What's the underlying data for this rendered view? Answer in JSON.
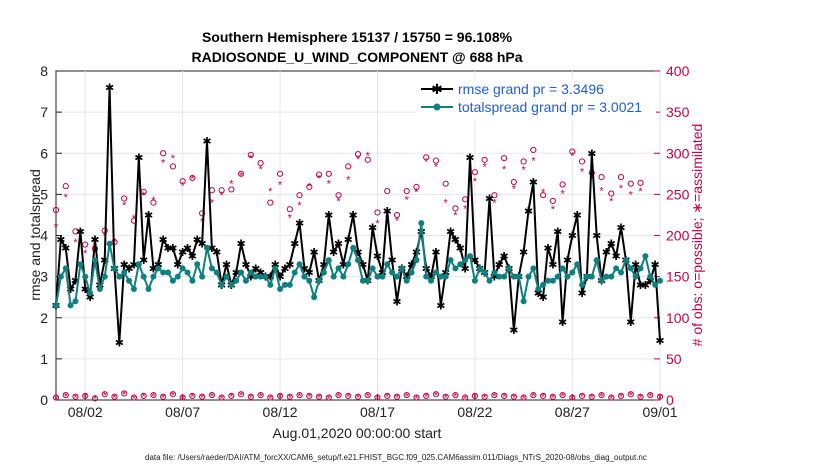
{
  "chart_data": {
    "type": "line",
    "title_line1": "Southern Hemisphere 15137 / 15750 = 96.108%",
    "title_line2": "RADIOSONDE_U_WIND_COMPONENT @ 688 hPa",
    "xlabel": "Aug.01,2020 00:00:00 start",
    "ylabel_left": "rmse and totalspread",
    "ylabel_right": "# of obs: o=possible; ∗=assimilated",
    "footer": "data file: /Users/raeder/DAI/ATM_forcXX/CAM6_setup/f.e21.FHIST_BGC.f09_025.CAM6assim.011/Diags_NTrS_2020-08/obs_diag_output.nc",
    "xlim": [
      0.5,
      31.5
    ],
    "ylim_left": [
      0,
      8
    ],
    "ylim_right": [
      0,
      400
    ],
    "x_ticks": [
      {
        "value": 2,
        "label": "08/02"
      },
      {
        "value": 7,
        "label": "08/07"
      },
      {
        "value": 12,
        "label": "08/12"
      },
      {
        "value": 17,
        "label": "08/17"
      },
      {
        "value": 22,
        "label": "08/22"
      },
      {
        "value": 27,
        "label": "08/27"
      },
      {
        "value": 32,
        "label": "09/01"
      }
    ],
    "y_ticks_left": [
      "0",
      "1",
      "2",
      "3",
      "4",
      "5",
      "6",
      "7",
      "8"
    ],
    "y_ticks_right": [
      "0",
      "50",
      "100",
      "150",
      "200",
      "250",
      "300",
      "350",
      "400"
    ],
    "legend": [
      {
        "name": "rmse grand pr = 3.3496",
        "color": "#000000"
      },
      {
        "name": "totalspread grand pr = 3.0021",
        "color": "#0f8080"
      }
    ],
    "colors": {
      "rmse": "#000000",
      "spread": "#0f8080",
      "obs": "#c8004b"
    },
    "x_start": 0.5,
    "x_step": 0.25,
    "series": [
      {
        "name": "rmse",
        "values": [
          2.3,
          3.9,
          3.7,
          2.7,
          2.9,
          4.1,
          2.7,
          2.5,
          3.9,
          2.8,
          3.4,
          7.6,
          3.2,
          1.4,
          3.3,
          3.2,
          3.3,
          5.9,
          3.4,
          4.5,
          3.2,
          3.3,
          3.9,
          3.7,
          3.7,
          3.3,
          3.6,
          3.7,
          3.5,
          3.9,
          3.8,
          6.3,
          3.7,
          3.6,
          2.8,
          3.3,
          2.8,
          3.1,
          3.8,
          3.3,
          3.0,
          3.2,
          3.1,
          3.0,
          3.0,
          3.3,
          3.0,
          3.2,
          3.3,
          3.8,
          4.3,
          3.2,
          3.1,
          3.6,
          2.9,
          3.3,
          4.5,
          3.6,
          3.8,
          3.3,
          3.9,
          4.5,
          3.6,
          3.3,
          2.9,
          4.2,
          3.5,
          3.1,
          4.6,
          3.4,
          2.4,
          3.2,
          3.0,
          3.3,
          3.6,
          4.1,
          3.2,
          3.0,
          3.6,
          2.3,
          3.1,
          4.1,
          3.9,
          3.7,
          3.2,
          5.9,
          3.4,
          3.2,
          3.1,
          4.9,
          3.0,
          3.3,
          3.5,
          3.2,
          1.7,
          3.0,
          3.6,
          4.6,
          5.3,
          2.6,
          2.5,
          3.7,
          3.3,
          4.1,
          1.9,
          3.4,
          4.0,
          4.5,
          2.6,
          3.0,
          6.0,
          4.0,
          2.9,
          3.6,
          3.8,
          3.5,
          4.2,
          3.4,
          1.9,
          3.3,
          2.8,
          2.8,
          2.9,
          3.3,
          1.45
        ]
      },
      {
        "name": "totalspread",
        "values": [
          2.3,
          3.0,
          3.2,
          2.3,
          2.4,
          3.3,
          3.0,
          2.6,
          3.4,
          2.7,
          3.0,
          3.8,
          3.2,
          3.0,
          3.1,
          2.9,
          2.7,
          3.3,
          3.0,
          2.7,
          3.0,
          3.2,
          3.1,
          3.1,
          2.9,
          3.0,
          3.2,
          3.1,
          2.9,
          3.3,
          3.0,
          3.7,
          3.2,
          3.1,
          2.8,
          3.0,
          2.8,
          2.9,
          3.1,
          2.9,
          3.1,
          3.0,
          3.0,
          3.0,
          2.8,
          3.2,
          2.7,
          2.8,
          2.8,
          3.1,
          3.3,
          3.0,
          2.9,
          2.5,
          2.9,
          3.1,
          3.4,
          3.0,
          3.2,
          3.0,
          3.3,
          3.7,
          3.4,
          2.9,
          2.9,
          3.2,
          3.0,
          3.0,
          3.3,
          3.1,
          3.0,
          3.2,
          2.9,
          3.1,
          3.4,
          4.3,
          3.0,
          2.9,
          3.1,
          3.0,
          3.0,
          3.4,
          3.2,
          3.3,
          3.4,
          3.5,
          2.9,
          3.2,
          3.1,
          2.9,
          3.1,
          3.0,
          3.0,
          3.2,
          3.0,
          3.0,
          2.4,
          3.0,
          3.2,
          2.7,
          2.8,
          2.9,
          2.9,
          3.0,
          3.2,
          3.0,
          3.1,
          3.3,
          2.8,
          3.0,
          3.0,
          3.4,
          2.9,
          3.0,
          3.0,
          3.2,
          3.1,
          3.4,
          3.2,
          3.0,
          3.2,
          3.5,
          3.0,
          2.8,
          2.9
        ],
        "note": "shown in teal"
      },
      {
        "name": "obs_possible_00Z",
        "axis": "right",
        "marker": "o",
        "start": 0.5,
        "step": 1,
        "values": [
          231,
          205,
          184,
          192,
          218,
          240,
          284,
          270,
          255,
          256,
          298,
          240,
          232,
          259,
          275,
          284,
          292,
          254,
          254,
          295,
          263,
          244,
          292,
          294,
          290,
          249,
          262,
          290,
          271,
          271,
          264
        ]
      },
      {
        "name": "obs_assimilated_00Z",
        "axis": "right",
        "marker": "*",
        "start": 0.5,
        "step": 1,
        "values": [
          211,
          192,
          193,
          193,
          221,
          243,
          294,
          269,
          240,
          263,
          294,
          254,
          222,
          260,
          263,
          268,
          297,
          221,
          244,
          290,
          240,
          233,
          284,
          281,
          280,
          253,
          251,
          278,
          255,
          258,
          254
        ]
      },
      {
        "name": "obs_possible_12Z",
        "axis": "right",
        "marker": "o",
        "start": 1.0,
        "step": 1,
        "values": [
          260,
          189,
          206,
          245,
          253,
          300,
          266,
          227,
          255,
          275,
          288,
          275,
          249,
          274,
          249,
          299,
          228,
          225,
          259,
          291,
          233,
          277,
          249,
          265,
          304,
          242,
          302,
          276,
          251,
          263
        ]
      },
      {
        "name": "obs_assimilated_12Z",
        "axis": "right",
        "marker": "*",
        "start": 1.0,
        "step": 1,
        "values": [
          247,
          179,
          200,
          237,
          249,
          289,
          261,
          217,
          249,
          273,
          281,
          262,
          237,
          270,
          242,
          293,
          215,
          218,
          253,
          284,
          225,
          266,
          240,
          257,
          291,
          232,
          297,
          269,
          242,
          250
        ]
      },
      {
        "name": "obs_possible_low",
        "axis": "right",
        "marker": "o",
        "start": 0.5,
        "step": 0.5,
        "values": [
          3,
          6,
          4,
          5,
          2,
          7,
          4,
          8,
          3,
          5,
          6,
          4,
          7,
          3,
          5,
          4,
          6,
          3,
          5,
          7,
          4,
          6,
          3,
          5,
          4,
          6,
          5,
          4,
          3,
          6,
          5,
          4,
          6,
          3,
          5,
          4,
          6,
          3,
          5,
          7,
          4,
          6,
          3,
          5,
          4,
          6,
          5,
          4,
          3,
          6,
          5,
          4,
          6,
          3,
          5,
          4,
          6,
          3,
          5,
          7,
          4,
          6,
          4
        ]
      },
      {
        "name": "obs_assimilated_low",
        "axis": "right",
        "marker": "*",
        "start": 0.5,
        "step": 0.5,
        "values": [
          2,
          5,
          3,
          4,
          2,
          6,
          3,
          7,
          2,
          4,
          5,
          3,
          6,
          2,
          4,
          3,
          5,
          2,
          4,
          6,
          3,
          5,
          2,
          4,
          3,
          5,
          4,
          3,
          2,
          5,
          4,
          3,
          5,
          2,
          4,
          3,
          5,
          2,
          4,
          6,
          3,
          5,
          2,
          4,
          3,
          5,
          4,
          3,
          2,
          5,
          4,
          3,
          5,
          2,
          4,
          3,
          5,
          2,
          4,
          6,
          3,
          5,
          3
        ]
      }
    ]
  }
}
